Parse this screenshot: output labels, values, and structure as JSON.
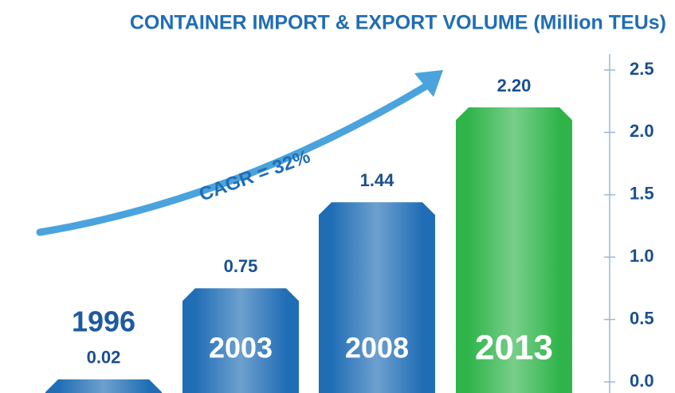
{
  "chart_data": {
    "type": "bar",
    "title": "CONTAINER IMPORT & EXPORT VOLUME (Million TEUs)",
    "annotation": "CAGR = 32%",
    "categories": [
      "1996",
      "2003",
      "2008",
      "2013"
    ],
    "values": [
      0.02,
      0.75,
      1.44,
      2.2
    ],
    "value_labels": [
      "0.02",
      "0.75",
      "1.44",
      "2.20"
    ],
    "colors": [
      "#1f6db5",
      "#1f6db5",
      "#1f6db5",
      "#2fb44a"
    ],
    "ylim": [
      0,
      2.5
    ],
    "yticks": [
      {
        "value": 0,
        "label": "0.0"
      },
      0.5,
      {
        "value": 1,
        "label": "1.0"
      },
      1.5,
      {
        "value": 2,
        "label": "2.0"
      },
      2.5
    ]
  }
}
